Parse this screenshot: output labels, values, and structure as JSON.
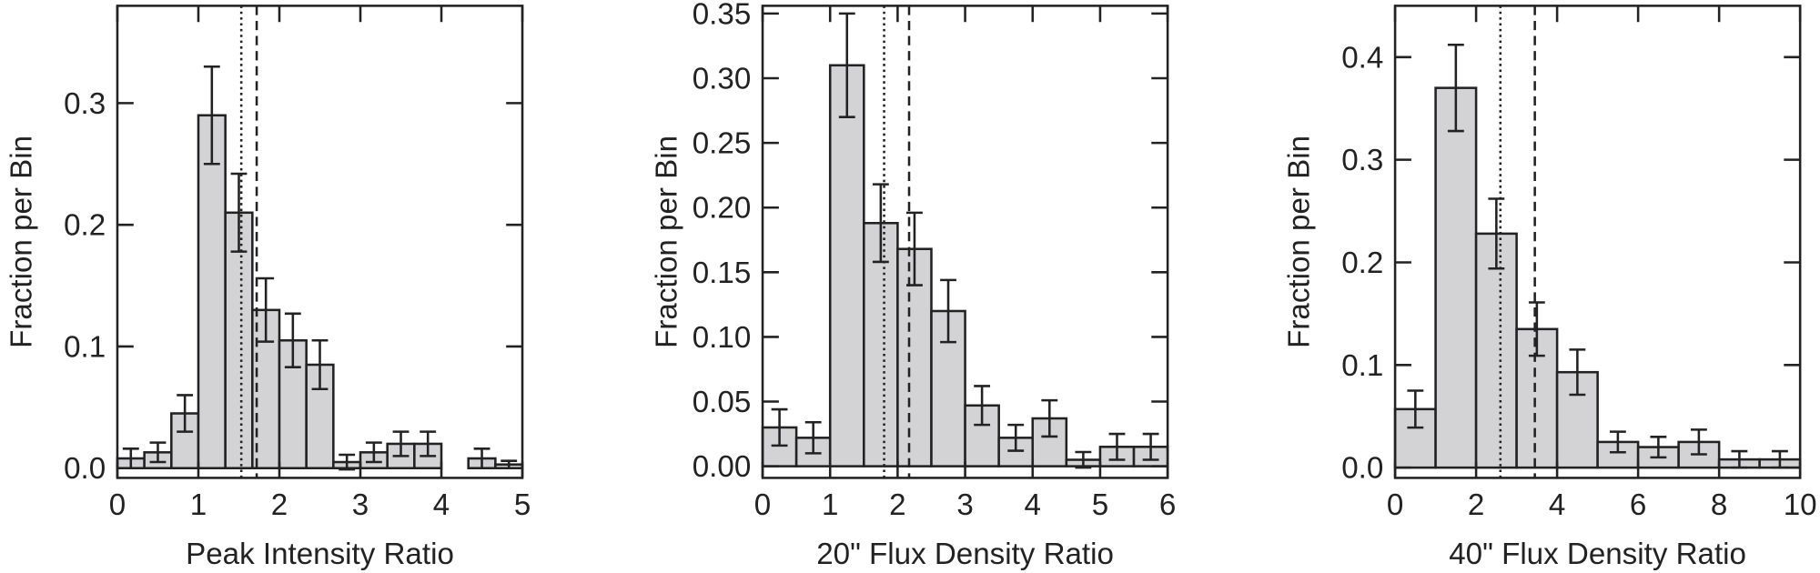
{
  "chart_data": [
    {
      "type": "histogram",
      "xlabel": "Peak Intensity Ratio",
      "ylabel": "Fraction per Bin",
      "bins": [
        0,
        0.3333,
        0.6667,
        1,
        1.3333,
        1.6667,
        2,
        2.3333,
        2.6667,
        3,
        3.3333,
        3.6667,
        4,
        4.3333,
        4.6667,
        5
      ],
      "values": [
        0.008,
        0.013,
        0.045,
        0.29,
        0.21,
        0.13,
        0.105,
        0.085,
        0.005,
        0.013,
        0.02,
        0.02,
        0,
        0.008,
        0.003
      ],
      "errors": [
        0.008,
        0.008,
        0.015,
        0.04,
        0.032,
        0.026,
        0.022,
        0.02,
        0.006,
        0.008,
        0.01,
        0.01,
        0,
        0.008,
        0.003
      ],
      "color": "#d3d3d5",
      "vlines": [
        {
          "value": 1.53,
          "style": "dotted"
        },
        {
          "value": 1.72,
          "style": "dashed"
        }
      ],
      "xlim": [
        0,
        5
      ],
      "ylim": [
        -0.008,
        0.38
      ],
      "xticks": [
        0,
        1,
        2,
        3,
        4,
        5
      ],
      "yticks": [
        {
          "value": 0,
          "label": "0.0"
        },
        0.1,
        0.2,
        0.3
      ]
    },
    {
      "type": "histogram",
      "xlabel": "20\" Flux Density Ratio",
      "ylabel": "Fraction per Bin",
      "bins": [
        0,
        0.5,
        1,
        1.5,
        2,
        2.5,
        3,
        3.5,
        4,
        4.5,
        5,
        5.5,
        6
      ],
      "values": [
        0.03,
        0.022,
        0.31,
        0.188,
        0.168,
        0.12,
        0.047,
        0.022,
        0.037,
        0.005,
        0.015,
        0.015
      ],
      "errors": [
        0.014,
        0.012,
        0.04,
        0.03,
        0.028,
        0.024,
        0.015,
        0.01,
        0.014,
        0.006,
        0.01,
        0.01
      ],
      "color": "#d3d3d5",
      "vlines": [
        {
          "value": 1.8,
          "style": "dotted"
        },
        {
          "value": 2.17,
          "style": "dashed"
        }
      ],
      "xlim": [
        0,
        6
      ],
      "ylim": [
        -0.009,
        0.356
      ],
      "xticks": [
        0,
        1,
        2,
        3,
        4,
        5,
        6
      ],
      "yticks": [
        {
          "value": 0,
          "label": "0.00"
        },
        0.05,
        {
          "value": 0.1,
          "label": "0.10"
        },
        0.15,
        {
          "value": 0.2,
          "label": "0.20"
        },
        0.25,
        {
          "value": 0.3,
          "label": "0.30"
        },
        0.35
      ]
    },
    {
      "type": "histogram",
      "xlabel": "40\" Flux Density Ratio",
      "ylabel": "Fraction per Bin",
      "bins": [
        0,
        1,
        2,
        3,
        4,
        5,
        6,
        7,
        8,
        9,
        10
      ],
      "values": [
        0.057,
        0.37,
        0.228,
        0.135,
        0.093,
        0.025,
        0.02,
        0.025,
        0.008,
        0.008
      ],
      "errors": [
        0.018,
        0.042,
        0.034,
        0.026,
        0.022,
        0.01,
        0.01,
        0.012,
        0.008,
        0.008
      ],
      "color": "#d3d3d5",
      "vlines": [
        {
          "value": 2.6,
          "style": "dotted"
        },
        {
          "value": 3.45,
          "style": "dashed"
        }
      ],
      "xlim": [
        0,
        10
      ],
      "ylim": [
        -0.01,
        0.45
      ],
      "xticks": [
        0,
        2,
        4,
        6,
        8,
        10
      ],
      "yticks": [
        {
          "value": 0,
          "label": "0.0"
        },
        0.1,
        0.2,
        0.3,
        0.4
      ]
    }
  ]
}
